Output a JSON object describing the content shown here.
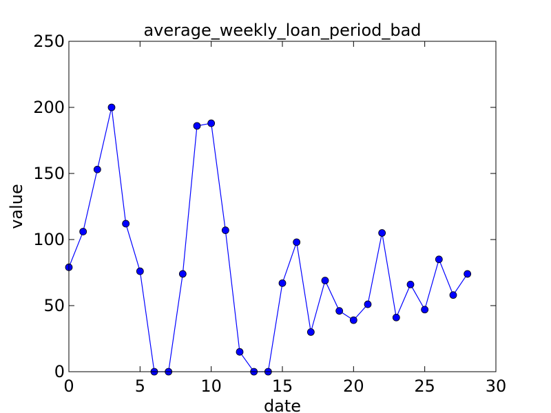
{
  "chart_data": {
    "type": "line",
    "title": "average_weekly_loan_period_bad",
    "xlabel": "date",
    "ylabel": "value",
    "xlim": [
      0,
      30
    ],
    "ylim": [
      0,
      250
    ],
    "xticks": [
      0,
      5,
      10,
      15,
      20,
      25,
      30
    ],
    "yticks": [
      0,
      50,
      100,
      150,
      200,
      250
    ],
    "grid": false,
    "colors": {
      "series": "#0000ff",
      "axes": "#000000",
      "background": "#ffffff"
    },
    "series": [
      {
        "x": [
          0,
          1,
          2,
          3,
          4,
          5,
          6,
          7,
          8,
          9,
          10,
          11,
          12,
          13,
          14,
          15,
          16,
          17,
          18,
          19,
          20,
          21,
          22,
          23,
          24,
          25,
          26,
          27,
          28
        ],
        "values": [
          79,
          106,
          153,
          200,
          112,
          76,
          0,
          0,
          74,
          186,
          188,
          107,
          15,
          0,
          0,
          67,
          98,
          30,
          69,
          46,
          39,
          51,
          105,
          41,
          66,
          47,
          85,
          58,
          74
        ]
      }
    ]
  }
}
